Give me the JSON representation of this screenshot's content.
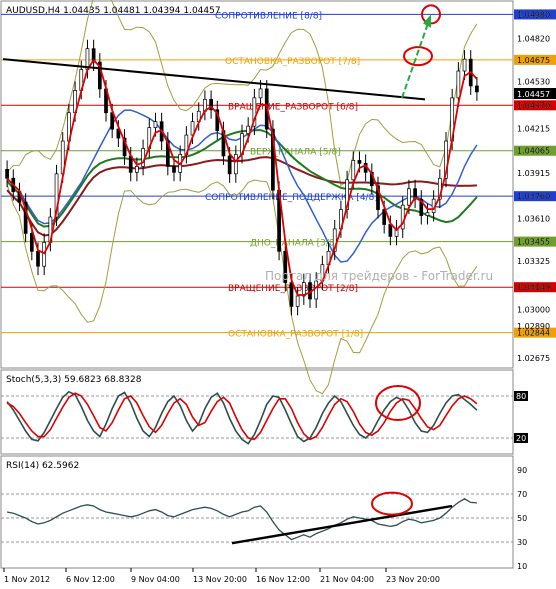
{
  "chart_data": [
    {
      "type": "candlestick",
      "title": "AUDUSD,H4  1.04435 1.04481 1.04394 1.04457",
      "y_ticks": [
        "1.04980",
        "1.04820",
        "1.04675",
        "1.04530",
        "1.04370",
        "1.04215",
        "1.04065",
        "1.03915",
        "1.03760",
        "1.03610",
        "1.03455",
        "1.03325",
        "1.03149",
        "1.03000",
        "1.02890",
        "1.02844",
        "1.02675"
      ],
      "ylim": [
        1.0262,
        1.0505
      ],
      "price_tag": "1.04457",
      "murrey_levels": [
        {
          "label": "СОПРОТИВЛЕНИЕ [8/8]",
          "value": 1.0498,
          "color": "#1f3fd0"
        },
        {
          "label": "ОСТАНОВКА_РАЗВОРОТ [7/8]",
          "value": 1.04675,
          "color": "#f0a000"
        },
        {
          "label": "ВРАЩЕНИЕ_РАЗВОРОТ [6/8]",
          "value": 1.0437,
          "color": "#d00000"
        },
        {
          "label": "ВЕРХ_КАНАЛА [5/8]",
          "value": 1.04065,
          "color": "#6fa02a"
        },
        {
          "label": "СОПРОТИВЛЕНИЕ_ПОДДЕРЖКА [4/8]",
          "value": 1.0376,
          "color": "#1f3fd0"
        },
        {
          "label": "ДНО_КАНАЛА [3/8]",
          "value": 1.03455,
          "color": "#6fa02a"
        },
        {
          "label": "ВРАЩЕНИЕ_РАЗВОРОТ [2/8]",
          "value": 1.03149,
          "color": "#d00000"
        },
        {
          "label": "ОСТАНОВКА_РАЗВОРОТ [1/8]",
          "value": 1.02844,
          "color": "#f0a000"
        }
      ],
      "watermark": "Портал для трейдеров - ForTrader.ru",
      "close": [
        1.0388,
        1.0379,
        1.0372,
        1.0351,
        1.0339,
        1.0329,
        1.0345,
        1.0362,
        1.0391,
        1.0413,
        1.0432,
        1.0447,
        1.0461,
        1.0475,
        1.0466,
        1.0448,
        1.0432,
        1.0421,
        1.0415,
        1.0403,
        1.0392,
        1.0396,
        1.0408,
        1.0422,
        1.0426,
        1.0413,
        1.0396,
        1.0392,
        1.0404,
        1.0417,
        1.0426,
        1.0433,
        1.0441,
        1.0434,
        1.042,
        1.0403,
        1.0391,
        1.0404,
        1.0418,
        1.0423,
        1.0442,
        1.0448,
        1.0421,
        1.038,
        1.0339,
        1.0318,
        1.0302,
        1.0309,
        1.0318,
        1.0307,
        1.0319,
        1.033,
        1.0339,
        1.0354,
        1.0367,
        1.0387,
        1.04,
        1.0398,
        1.0392,
        1.0383,
        1.0367,
        1.0357,
        1.0349,
        1.0354,
        1.037,
        1.0381,
        1.0374,
        1.0363,
        1.0365,
        1.0374,
        1.0388,
        1.0413,
        1.0442,
        1.046,
        1.0468,
        1.045,
        1.0446
      ]
    },
    {
      "type": "line",
      "title": "Stoch(5,3,3) 59.6823 68.8328",
      "ylim": [
        0,
        100
      ],
      "y_ticks": [
        "80",
        "20"
      ],
      "series": [
        {
          "name": "59.6823",
          "color": "#2f4f4f",
          "values": [
            72,
            60,
            45,
            30,
            18,
            16,
            28,
            45,
            62,
            78,
            86,
            82,
            65,
            45,
            30,
            22,
            40,
            62,
            80,
            85,
            70,
            48,
            30,
            22,
            35,
            55,
            72,
            80,
            66,
            45,
            30,
            40,
            62,
            78,
            84,
            70,
            48,
            30,
            18,
            12,
            25,
            45,
            68,
            80,
            78,
            60,
            40,
            22,
            15,
            20,
            35,
            55,
            70,
            80,
            72,
            55,
            38,
            25,
            20,
            28,
            45,
            60,
            72,
            78,
            74,
            60,
            42,
            30,
            28,
            38,
            55,
            70,
            80,
            82,
            75,
            68,
            59.7
          ]
        },
        {
          "name": "68.8328",
          "color": "#e00000",
          "values": [
            70,
            65,
            55,
            42,
            30,
            22,
            22,
            32,
            48,
            64,
            78,
            84,
            80,
            68,
            52,
            35,
            30,
            42,
            60,
            76,
            80,
            70,
            52,
            36,
            28,
            38,
            55,
            70,
            76,
            68,
            50,
            38,
            42,
            58,
            72,
            78,
            70,
            50,
            32,
            20,
            18,
            28,
            45,
            62,
            76,
            76,
            62,
            42,
            26,
            18,
            22,
            35,
            52,
            68,
            76,
            72,
            58,
            40,
            28,
            24,
            30,
            42,
            58,
            70,
            76,
            74,
            62,
            48,
            36,
            32,
            38,
            52,
            66,
            76,
            80,
            76,
            68.8
          ]
        }
      ]
    },
    {
      "type": "line",
      "title": "RSI(14) 62.5962",
      "ylim": [
        10,
        90
      ],
      "y_ticks": [
        "90",
        "70",
        "50",
        "30",
        "10"
      ],
      "series": [
        {
          "name": "62.5962",
          "color": "#2f4f4f",
          "values": [
            55,
            54,
            52,
            50,
            47,
            45,
            46,
            48,
            51,
            54,
            56,
            58,
            60,
            61,
            60,
            57,
            55,
            54,
            53,
            52,
            51,
            52,
            54,
            56,
            57,
            55,
            52,
            51,
            53,
            55,
            57,
            58,
            59,
            58,
            56,
            53,
            51,
            53,
            55,
            56,
            59,
            60,
            55,
            47,
            40,
            36,
            32,
            34,
            36,
            34,
            37,
            39,
            41,
            44,
            46,
            49,
            51,
            50,
            49,
            48,
            45,
            44,
            43,
            44,
            47,
            49,
            48,
            46,
            47,
            48,
            50,
            54,
            59,
            63,
            66,
            63,
            62.6
          ]
        }
      ]
    }
  ],
  "x_labels": [
    "1 Nov 2012",
    "6 Nov 12:00",
    "9 Nov 04:00",
    "13 Nov 20:00",
    "16 Nov 12:00",
    "21 Nov 04:00",
    "23 Nov 20:00"
  ],
  "colors": {
    "accent_red": "#e00000",
    "target_green": "#22aa44",
    "trend_line": "#000000"
  }
}
